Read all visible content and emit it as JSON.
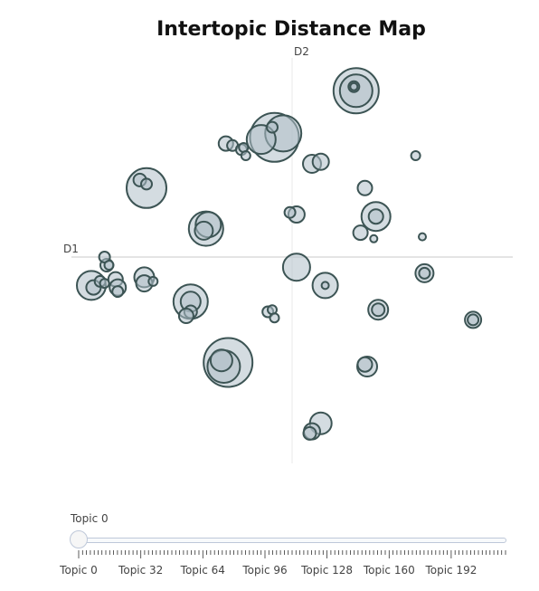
{
  "chart_data": {
    "type": "scatter",
    "title": "Intertopic Distance Map",
    "xlabel": "D1",
    "ylabel": "D2",
    "xlim": [
      -10,
      10
    ],
    "ylim": [
      -10,
      10
    ],
    "grid": false,
    "points": [
      {
        "x": 2.9,
        "y": 8.2,
        "s": 25
      },
      {
        "x": 2.9,
        "y": 8.2,
        "s": 18
      },
      {
        "x": 2.8,
        "y": 8.4,
        "s": 6
      },
      {
        "x": 2.8,
        "y": 8.4,
        "s": 4
      },
      {
        "x": -0.8,
        "y": 5.9,
        "s": 27
      },
      {
        "x": -0.4,
        "y": 6.1,
        "s": 20
      },
      {
        "x": -1.4,
        "y": 5.8,
        "s": 16
      },
      {
        "x": -0.9,
        "y": 6.4,
        "s": 6
      },
      {
        "x": -3.0,
        "y": 5.6,
        "s": 8
      },
      {
        "x": -2.7,
        "y": 5.5,
        "s": 6
      },
      {
        "x": -2.3,
        "y": 5.3,
        "s": 6
      },
      {
        "x": -2.2,
        "y": 5.4,
        "s": 5
      },
      {
        "x": -2.1,
        "y": 5.0,
        "s": 5
      },
      {
        "x": 0.9,
        "y": 4.6,
        "s": 10
      },
      {
        "x": 1.3,
        "y": 4.7,
        "s": 9
      },
      {
        "x": 5.6,
        "y": 5.0,
        "s": 5
      },
      {
        "x": -6.6,
        "y": 3.4,
        "s": 22
      },
      {
        "x": -6.9,
        "y": 3.8,
        "s": 7
      },
      {
        "x": -6.6,
        "y": 3.6,
        "s": 6
      },
      {
        "x": 0.2,
        "y": 2.1,
        "s": 9
      },
      {
        "x": -0.1,
        "y": 2.2,
        "s": 6
      },
      {
        "x": 3.3,
        "y": 3.4,
        "s": 8
      },
      {
        "x": 3.8,
        "y": 2.0,
        "s": 16
      },
      {
        "x": 3.8,
        "y": 2.0,
        "s": 8
      },
      {
        "x": 3.1,
        "y": 1.2,
        "s": 8
      },
      {
        "x": 3.7,
        "y": 0.9,
        "s": 4
      },
      {
        "x": 5.9,
        "y": 1.0,
        "s": 4
      },
      {
        "x": -3.9,
        "y": 1.4,
        "s": 19
      },
      {
        "x": -3.8,
        "y": 1.6,
        "s": 14
      },
      {
        "x": -4.0,
        "y": 1.3,
        "s": 10
      },
      {
        "x": 0.2,
        "y": -0.5,
        "s": 15
      },
      {
        "x": 1.5,
        "y": -1.4,
        "s": 14
      },
      {
        "x": 1.5,
        "y": -1.4,
        "s": 4
      },
      {
        "x": 6.0,
        "y": -0.8,
        "s": 10
      },
      {
        "x": 6.0,
        "y": -0.8,
        "s": 6
      },
      {
        "x": -9.1,
        "y": -1.4,
        "s": 16
      },
      {
        "x": -9.0,
        "y": -1.5,
        "s": 8
      },
      {
        "x": -8.7,
        "y": -1.2,
        "s": 6
      },
      {
        "x": -8.5,
        "y": -1.3,
        "s": 5
      },
      {
        "x": -8.4,
        "y": -0.4,
        "s": 7
      },
      {
        "x": -8.5,
        "y": 0.0,
        "s": 6
      },
      {
        "x": -8.3,
        "y": -0.4,
        "s": 5
      },
      {
        "x": -8.0,
        "y": -1.1,
        "s": 8
      },
      {
        "x": -7.9,
        "y": -1.5,
        "s": 9
      },
      {
        "x": -7.9,
        "y": -1.7,
        "s": 6
      },
      {
        "x": -6.7,
        "y": -1.0,
        "s": 11
      },
      {
        "x": -6.7,
        "y": -1.3,
        "s": 9
      },
      {
        "x": -6.3,
        "y": -1.2,
        "s": 5
      },
      {
        "x": -4.6,
        "y": -2.2,
        "s": 19
      },
      {
        "x": -4.6,
        "y": -2.2,
        "s": 11
      },
      {
        "x": -4.6,
        "y": -2.7,
        "s": 7
      },
      {
        "x": -4.8,
        "y": -2.9,
        "s": 8
      },
      {
        "x": -1.1,
        "y": -2.7,
        "s": 6
      },
      {
        "x": -0.9,
        "y": -2.6,
        "s": 5
      },
      {
        "x": -0.8,
        "y": -3.0,
        "s": 5
      },
      {
        "x": 3.9,
        "y": -2.6,
        "s": 11
      },
      {
        "x": 3.9,
        "y": -2.6,
        "s": 7
      },
      {
        "x": 8.2,
        "y": -3.1,
        "s": 9
      },
      {
        "x": 8.2,
        "y": -3.1,
        "s": 6
      },
      {
        "x": -2.9,
        "y": -5.2,
        "s": 27
      },
      {
        "x": -3.1,
        "y": -5.4,
        "s": 18
      },
      {
        "x": -3.2,
        "y": -5.1,
        "s": 12
      },
      {
        "x": 3.4,
        "y": -5.4,
        "s": 11
      },
      {
        "x": 3.3,
        "y": -5.3,
        "s": 8
      },
      {
        "x": 1.3,
        "y": -8.2,
        "s": 12
      },
      {
        "x": 0.9,
        "y": -8.6,
        "s": 9
      },
      {
        "x": 0.8,
        "y": -8.7,
        "s": 7
      }
    ]
  },
  "slider": {
    "current_label": "Topic 0",
    "value": 0,
    "min": 0,
    "max": 220,
    "tick_labels": [
      "Topic 0",
      "Topic 32",
      "Topic 64",
      "Topic 96",
      "Topic 128",
      "Topic 160",
      "Topic 192"
    ],
    "tick_values": [
      0,
      32,
      64,
      96,
      128,
      160,
      192
    ],
    "minor_tick_step": 2
  }
}
